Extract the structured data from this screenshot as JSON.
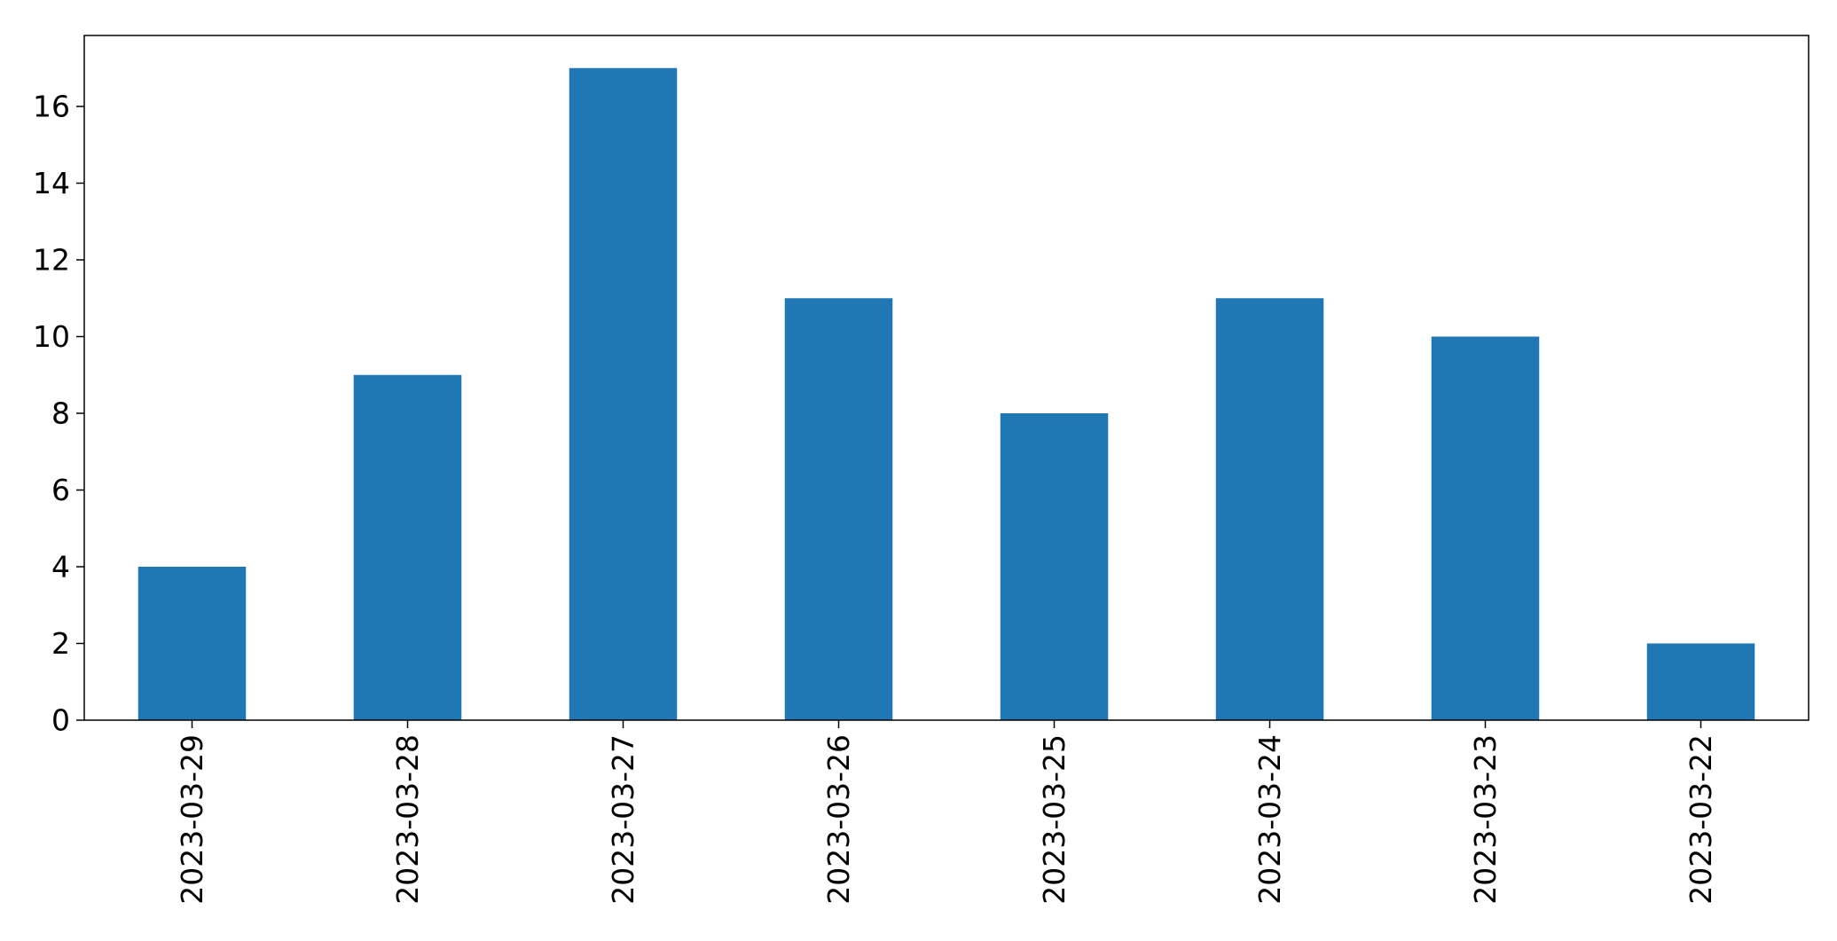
{
  "chart_data": {
    "type": "bar",
    "title": "",
    "xlabel": "",
    "ylabel": "",
    "categories": [
      "2023-03-29",
      "2023-03-28",
      "2023-03-27",
      "2023-03-26",
      "2023-03-25",
      "2023-03-24",
      "2023-03-23",
      "2023-03-22"
    ],
    "values": [
      4,
      9,
      17,
      11,
      8,
      11,
      10,
      2
    ],
    "ylim": [
      0,
      17.85
    ],
    "yticks": [
      0,
      2,
      4,
      6,
      8,
      10,
      12,
      14,
      16
    ],
    "bar_color": "#1f77b4",
    "grid": false,
    "legend": "none"
  }
}
